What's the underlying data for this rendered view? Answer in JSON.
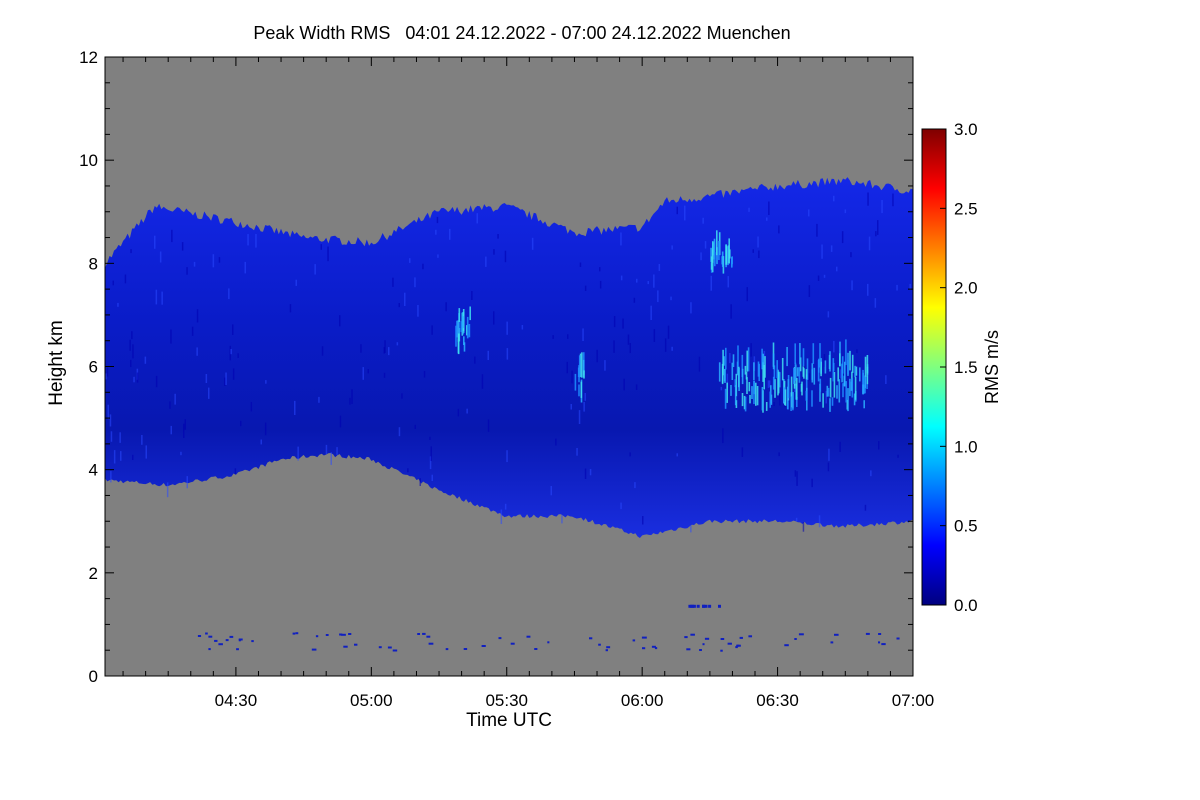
{
  "chart_data": {
    "type": "heatmap",
    "title": "Peak Width RMS   04:01 24.12.2022 - 07:00 24.12.2022 Muenchen",
    "xlabel": "Time UTC",
    "ylabel": "Height km",
    "xlim": [
      "04:01",
      "07:00"
    ],
    "ylim": [
      0,
      12
    ],
    "x_ticks": [
      "04:30",
      "05:00",
      "05:30",
      "06:00",
      "06:30",
      "07:00"
    ],
    "y_ticks": [
      0,
      2,
      4,
      6,
      8,
      10,
      12
    ],
    "colorbar": {
      "label": "RMS m/s",
      "range": [
        0.0,
        3.0
      ],
      "ticks": [
        "0.0",
        "0.5",
        "1.0",
        "1.5",
        "2.0",
        "2.5",
        "3.0"
      ],
      "colormap": "jet"
    },
    "no_data_color": "#808080",
    "cloud_layer": {
      "description_values": "typical RMS 0.2-0.5 m/s, local maxima ~1.0-1.2 m/s near 5.5 km around 06:20-06:50",
      "base_km": [
        [
          "04:01",
          3.8
        ],
        [
          "04:15",
          3.7
        ],
        [
          "04:30",
          3.9
        ],
        [
          "04:40",
          4.2
        ],
        [
          "04:50",
          4.3
        ],
        [
          "05:00",
          4.2
        ],
        [
          "05:15",
          3.6
        ],
        [
          "05:30",
          3.1
        ],
        [
          "05:45",
          3.1
        ],
        [
          "06:00",
          2.7
        ],
        [
          "06:15",
          3.0
        ],
        [
          "06:30",
          3.0
        ],
        [
          "06:45",
          2.9
        ],
        [
          "07:00",
          3.0
        ]
      ],
      "top_km": [
        [
          "04:01",
          8.0
        ],
        [
          "04:12",
          9.1
        ],
        [
          "04:30",
          8.8
        ],
        [
          "04:45",
          8.5
        ],
        [
          "05:00",
          8.4
        ],
        [
          "05:15",
          9.0
        ],
        [
          "05:30",
          9.1
        ],
        [
          "05:45",
          8.6
        ],
        [
          "06:00",
          8.7
        ],
        [
          "06:05",
          9.2
        ],
        [
          "06:15",
          9.3
        ],
        [
          "06:30",
          9.5
        ],
        [
          "06:45",
          9.6
        ],
        [
          "07:00",
          9.4
        ]
      ],
      "enhanced_regions": [
        {
          "time": [
            "06:17",
            "06:50"
          ],
          "height_km": [
            5.1,
            6.1
          ],
          "rms": 1.0
        },
        {
          "time": [
            "05:18",
            "05:22"
          ],
          "height_km": [
            6.2,
            6.9
          ],
          "rms": 0.8
        },
        {
          "time": [
            "05:45",
            "05:47"
          ],
          "height_km": [
            5.3,
            5.9
          ],
          "rms": 0.9
        },
        {
          "time": [
            "06:15",
            "06:20"
          ],
          "height_km": [
            7.8,
            8.2
          ],
          "rms": 0.7
        }
      ]
    }
  }
}
